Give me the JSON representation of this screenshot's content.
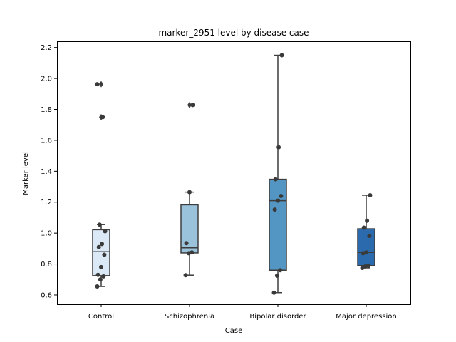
{
  "chart_data": {
    "type": "box",
    "title": "marker_2951 level by disease case",
    "xlabel": "Case",
    "ylabel": "Marker level",
    "ylim": [
      0.54,
      2.24
    ],
    "yticks": [
      "0.6",
      "0.8",
      "1.0",
      "1.2",
      "1.4",
      "1.6",
      "1.8",
      "2.0",
      "2.2"
    ],
    "grid": false,
    "categories": [
      "Control",
      "Schizophrenia",
      "Bipolar disorder",
      "Major depression"
    ],
    "colors": [
      "#dbe8f5",
      "#9ac3db",
      "#5396c4",
      "#2a6aad"
    ],
    "boxes": [
      {
        "q1": 0.725,
        "median": 0.88,
        "q3": 1.022,
        "whisker_low": 0.655,
        "whisker_high": 1.055,
        "outliers": [
          1.75,
          1.963
        ],
        "points": [
          0.655,
          0.7,
          0.72,
          0.73,
          0.78,
          0.86,
          0.91,
          0.93,
          1.012,
          1.055,
          1.75,
          1.963
        ]
      },
      {
        "q1": 0.872,
        "median": 0.905,
        "q3": 1.183,
        "whisker_low": 0.728,
        "whisker_high": 1.265,
        "outliers": [
          1.828
        ],
        "points": [
          0.728,
          0.87,
          0.875,
          0.935,
          1.265,
          1.828
        ]
      },
      {
        "q1": 0.76,
        "median": 1.21,
        "q3": 1.348,
        "whisker_low": 0.615,
        "whisker_high": 2.15,
        "outliers": [],
        "points": [
          0.615,
          0.725,
          0.76,
          1.152,
          1.21,
          1.24,
          1.348,
          1.555,
          2.15
        ]
      },
      {
        "q1": 0.79,
        "median": 0.875,
        "q3": 1.028,
        "whisker_low": 0.775,
        "whisker_high": 1.245,
        "outliers": [],
        "points": [
          0.775,
          0.785,
          0.79,
          0.87,
          0.875,
          0.982,
          1.035,
          1.08,
          1.245
        ]
      }
    ]
  }
}
